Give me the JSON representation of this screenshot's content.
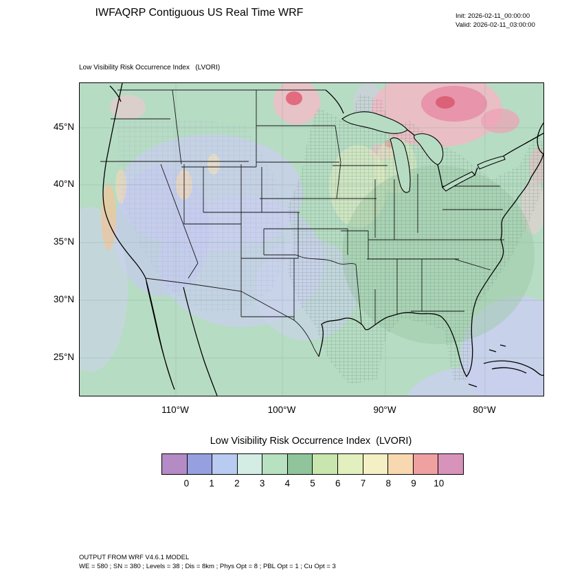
{
  "header": {
    "title": "IWFAQRP Contiguous US Real Time WRF",
    "init": "Init: 2026-02-11_00:00:00",
    "valid": "Valid: 2026-02-11_03:00:00"
  },
  "map": {
    "subtitle": "Low Visibility Risk Occurrence Index   (LVORI)",
    "lat_ticks": [
      "45°N",
      "40°N",
      "35°N",
      "30°N",
      "25°N"
    ],
    "lon_ticks": [
      "110°W",
      "100°W",
      "90°W",
      "80°W"
    ]
  },
  "colorbar": {
    "title": "Low Visibility Risk Occurrence Index  (LVORI)",
    "tick_labels": [
      "0",
      "1",
      "2",
      "3",
      "4",
      "5",
      "6",
      "7",
      "8",
      "9",
      "10"
    ],
    "colors": [
      "#b48bc5",
      "#96a0e0",
      "#b9cbf0",
      "#d3ece4",
      "#b7e1c0",
      "#90c59c",
      "#c8e6ae",
      "#e2efbe",
      "#f4efc4",
      "#f8d8b0",
      "#efa0a0",
      "#d893bb"
    ],
    "range_min": 0,
    "range_max": 10
  },
  "footer": {
    "line1": "OUTPUT FROM WRF V4.6.1 MODEL",
    "line2": "WE = 580 ; SN = 380 ; Levels = 38 ; Dis = 8km ; Phys Opt = 8 ; PBL Opt = 1 ; Cu Opt = 3"
  },
  "chart_data": {
    "type": "heatmap",
    "title": "Low Visibility Risk Occurrence Index (LVORI)",
    "region": "Contiguous US",
    "legend_values": [
      0,
      1,
      2,
      3,
      4,
      5,
      6,
      7,
      8,
      9,
      10
    ],
    "lat_range": [
      "25°N",
      "45°N"
    ],
    "lon_range": [
      "110°W",
      "80°W"
    ]
  }
}
